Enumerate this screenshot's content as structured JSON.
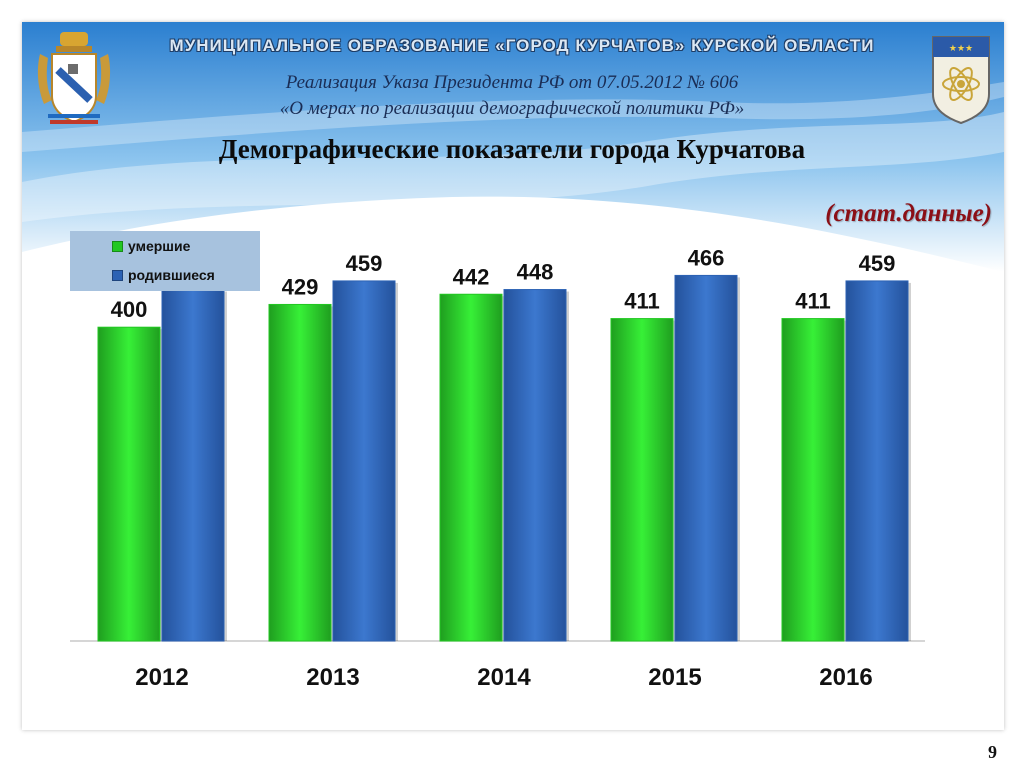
{
  "header": {
    "org_title": "МУНИЦИПАЛЬНОЕ ОБРАЗОВАНИЕ «ГОРОД КУРЧАТОВ» КУРСКОЙ ОБЛАСТИ",
    "decree_line1": "Реализация Указа Президента РФ от 07.05.2012 № 606",
    "decree_line2": "«О мерах по реализации демографической политики РФ»",
    "main_title": "Демографические показатели города Курчатова",
    "stat_note": "(стат.данные)"
  },
  "emblems": [
    "kursk-oblast-coat-of-arms-icon",
    "kurchatov-coat-of-arms-icon"
  ],
  "colors": {
    "deaths": "#22c822",
    "births": "#2c62b4",
    "legend_bg": "#a7c2de",
    "header_sky": "#3a8fd8"
  },
  "chart_data": {
    "type": "bar",
    "categories": [
      "2012",
      "2013",
      "2014",
      "2015",
      "2016"
    ],
    "series": [
      {
        "name": "умершие",
        "values": [
          400,
          429,
          442,
          411,
          411
        ]
      },
      {
        "name": "родившиеся",
        "values": [
          448,
          459,
          448,
          466,
          459
        ]
      }
    ],
    "legend_position": "top-left",
    "grid": false,
    "data_labels": true
  },
  "page_number": "9"
}
